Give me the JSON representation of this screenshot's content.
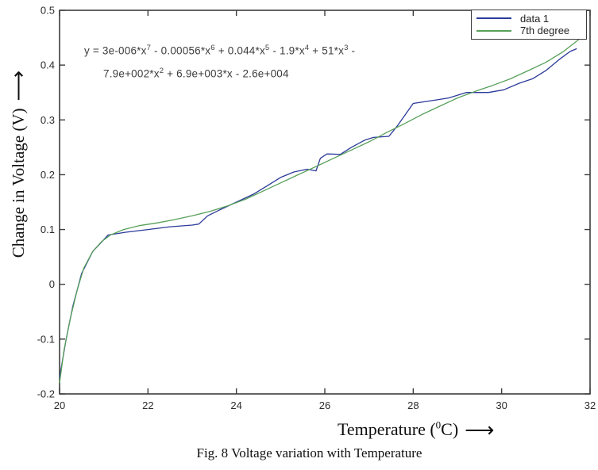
{
  "figure": {
    "caption": "Fig. 8 Voltage variation with Temperature"
  },
  "chart_data": {
    "type": "line",
    "title": "",
    "xlabel": {
      "pre": "Temperature (",
      "sup": "0",
      "post": "C)",
      "arrow": "⟶"
    },
    "ylabel": {
      "text": "Change in Voltage (V)",
      "arrow": "⟶"
    },
    "xlim": [
      20,
      32
    ],
    "ylim": [
      -0.2,
      0.5
    ],
    "grid": false,
    "axis_color": "#3c3c3c",
    "x_ticks": [
      20,
      22,
      24,
      26,
      28,
      30,
      32
    ],
    "x_tick_labels": [
      "20",
      "22",
      "24",
      "26",
      "28",
      "30",
      "32"
    ],
    "y_ticks": [
      -0.2,
      -0.1,
      0,
      0.1,
      0.2,
      0.3,
      0.4,
      0.5
    ],
    "y_tick_labels": [
      "-0.2",
      "-0.1",
      "0",
      "0.1",
      "0.2",
      "0.3",
      "0.4",
      "0.5"
    ],
    "legend": {
      "position": "top-right",
      "entries": [
        {
          "label": "data 1",
          "color": "#2b3a9a"
        },
        {
          "label": "7th degree",
          "color": "#58a05a"
        }
      ]
    },
    "annotation": {
      "lines": [
        [
          {
            "t": "y = 3e-006*x"
          },
          {
            "sup": "7"
          },
          {
            "t": " - 0.00056*x"
          },
          {
            "sup": "6"
          },
          {
            "t": " + 0.044*x"
          },
          {
            "sup": "5"
          },
          {
            "t": " - 1.9*x"
          },
          {
            "sup": "4"
          },
          {
            "t": " + 51*x"
          },
          {
            "sup": "3"
          },
          {
            "t": " -"
          }
        ],
        [
          {
            "t": "7.9e+002*x"
          },
          {
            "sup": "2"
          },
          {
            "t": " + 6.9e+003*x - 2.6e+004"
          }
        ]
      ]
    },
    "series": [
      {
        "name": "data 1",
        "color": "#2b3a9a",
        "points": [
          [
            20,
            -0.17
          ],
          [
            20.15,
            -0.1
          ],
          [
            20.3,
            -0.04
          ],
          [
            20.5,
            0.02
          ],
          [
            20.75,
            0.06
          ],
          [
            21.1,
            0.09
          ],
          [
            21.5,
            0.095
          ],
          [
            22,
            0.1
          ],
          [
            22.5,
            0.105
          ],
          [
            23,
            0.108
          ],
          [
            23.15,
            0.11
          ],
          [
            23.35,
            0.125
          ],
          [
            23.6,
            0.135
          ],
          [
            24,
            0.15
          ],
          [
            24.4,
            0.165
          ],
          [
            24.7,
            0.18
          ],
          [
            25,
            0.195
          ],
          [
            25.3,
            0.205
          ],
          [
            25.6,
            0.21
          ],
          [
            25.8,
            0.207
          ],
          [
            25.9,
            0.23
          ],
          [
            26.05,
            0.238
          ],
          [
            26.35,
            0.237
          ],
          [
            26.6,
            0.25
          ],
          [
            26.9,
            0.263
          ],
          [
            27.1,
            0.268
          ],
          [
            27.45,
            0.27
          ],
          [
            27.65,
            0.29
          ],
          [
            28,
            0.33
          ],
          [
            28.4,
            0.335
          ],
          [
            28.8,
            0.34
          ],
          [
            29.2,
            0.35
          ],
          [
            29.7,
            0.35
          ],
          [
            30.05,
            0.355
          ],
          [
            30.4,
            0.367
          ],
          [
            30.7,
            0.375
          ],
          [
            31,
            0.39
          ],
          [
            31.3,
            0.41
          ],
          [
            31.55,
            0.425
          ],
          [
            31.7,
            0.43
          ]
        ]
      },
      {
        "name": "7th degree",
        "color": "#58a05a",
        "points": [
          [
            20,
            -0.18
          ],
          [
            20.1,
            -0.12
          ],
          [
            20.25,
            -0.06
          ],
          [
            20.4,
            -0.01
          ],
          [
            20.55,
            0.03
          ],
          [
            20.75,
            0.06
          ],
          [
            20.95,
            0.078
          ],
          [
            21.15,
            0.09
          ],
          [
            21.45,
            0.1
          ],
          [
            21.8,
            0.107
          ],
          [
            22.2,
            0.112
          ],
          [
            22.6,
            0.118
          ],
          [
            23,
            0.125
          ],
          [
            23.4,
            0.133
          ],
          [
            23.8,
            0.143
          ],
          [
            24.2,
            0.155
          ],
          [
            24.6,
            0.17
          ],
          [
            25,
            0.185
          ],
          [
            25.4,
            0.2
          ],
          [
            25.8,
            0.215
          ],
          [
            26.2,
            0.23
          ],
          [
            26.6,
            0.245
          ],
          [
            27,
            0.26
          ],
          [
            27.4,
            0.277
          ],
          [
            27.8,
            0.293
          ],
          [
            28.2,
            0.31
          ],
          [
            28.6,
            0.325
          ],
          [
            29,
            0.34
          ],
          [
            29.4,
            0.352
          ],
          [
            29.8,
            0.363
          ],
          [
            30.2,
            0.375
          ],
          [
            30.6,
            0.39
          ],
          [
            31,
            0.405
          ],
          [
            31.4,
            0.425
          ],
          [
            31.75,
            0.447
          ]
        ]
      }
    ]
  }
}
